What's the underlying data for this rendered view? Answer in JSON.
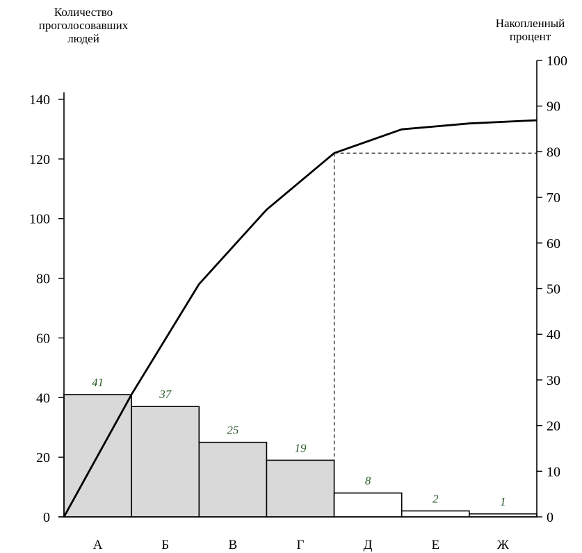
{
  "chart_data": {
    "type": "bar",
    "title": "",
    "ylabel_left": "Количество проголосовавших людей",
    "ylabel_right": "Накопленный процент",
    "categories": [
      "А",
      "Б",
      "В",
      "Г",
      "Д",
      "Е",
      "Ж"
    ],
    "values": [
      41,
      37,
      25,
      19,
      8,
      2,
      1
    ],
    "data_labels": [
      "41",
      "37",
      "25",
      "19",
      "8",
      "2",
      "1"
    ],
    "highlighted_categories": [
      "А",
      "Б",
      "В",
      "Г"
    ],
    "cumulative_percent": [
      0,
      26.8,
      51,
      67.3,
      79.7,
      84.9,
      86.2,
      86.9
    ],
    "threshold_percent": 79.7,
    "ylim_left": [
      0,
      140
    ],
    "yticks_left": [
      "0",
      "20",
      "40",
      "60",
      "80",
      "100",
      "120",
      "140"
    ],
    "ylim_right": [
      0,
      100
    ],
    "yticks_right": [
      "0",
      "10",
      "20",
      "30",
      "40",
      "50",
      "60",
      "70",
      "80",
      "90",
      "100"
    ],
    "grid": false,
    "colors": {
      "highlighted_bar": "#d9d9d9",
      "bar": "#ffffff",
      "line": "#000000",
      "data_label": "#2e5a2e"
    }
  }
}
